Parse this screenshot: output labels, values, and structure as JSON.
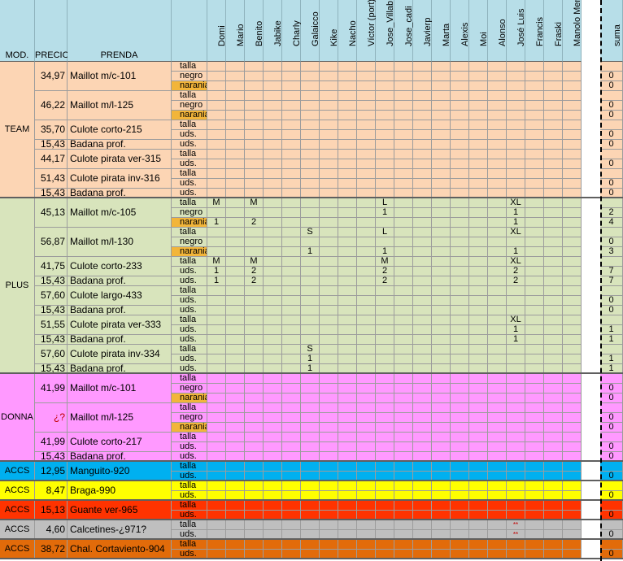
{
  "headers": {
    "mod": "MOD.",
    "precio": "PRECIO",
    "prenda": "PRENDA",
    "suma": "suma"
  },
  "people": [
    "Domi",
    "Mario",
    "Benito",
    "Jabike",
    "Charly",
    "Galaicco",
    "Kike",
    "Nacho",
    "Víctor (port)",
    "Jose_Villab",
    "Jose_cadi",
    "Javierp",
    "Marta",
    "Alexis",
    "Moi",
    "Alonso",
    "José Luis",
    "Francis",
    "Fraski",
    "Manolo Men"
  ],
  "colors": {
    "header": "#b7dee8",
    "team": "#fcd5b4",
    "plus": "#d8e4bc",
    "donna": "#ff99ff",
    "accs_blue": "#00b0f0",
    "accs_yellow": "#ffff00",
    "accs_red": "#ff3300",
    "accs_gray": "#bfbfbf",
    "accs_orange": "#e26b0a",
    "narania": "#f2b53a"
  },
  "blocks": [
    {
      "mod": "TEAM",
      "color": "#fcd5b4",
      "items": [
        {
          "price": "34,97",
          "prenda": "Maillot m/c-101",
          "rows": [
            {
              "attr": "talla",
              "vals": {},
              "sum": ""
            },
            {
              "attr": "negro",
              "vals": {},
              "sum": "0"
            },
            {
              "attr": "narania",
              "hl": true,
              "vals": {},
              "sum": "0"
            }
          ]
        },
        {
          "price": "46,22",
          "prenda": "Maillot m/l-125",
          "rows": [
            {
              "attr": "talla",
              "vals": {},
              "sum": ""
            },
            {
              "attr": "negro",
              "vals": {},
              "sum": "0"
            },
            {
              "attr": "narania",
              "hl": true,
              "vals": {},
              "sum": "0"
            }
          ]
        },
        {
          "price": "35,70",
          "prenda": "Culote corto-215",
          "rows": [
            {
              "attr": "talla",
              "vals": {},
              "sum": ""
            },
            {
              "attr": "uds.",
              "vals": {},
              "sum": "0"
            }
          ]
        },
        {
          "price": "15,43",
          "prenda": "Badana prof.",
          "rows": [
            {
              "attr": "uds.",
              "vals": {},
              "sum": "0"
            }
          ]
        },
        {
          "price": "44,17",
          "prenda": "Culote pirata ver-315",
          "rows": [
            {
              "attr": "talla",
              "vals": {},
              "sum": ""
            },
            {
              "attr": "uds.",
              "vals": {},
              "sum": "0"
            }
          ]
        },
        {
          "price": "51,43",
          "prenda": "Culote pirata inv-316",
          "rows": [
            {
              "attr": "talla",
              "vals": {},
              "sum": ""
            },
            {
              "attr": "uds.",
              "vals": {},
              "sum": "0"
            }
          ]
        },
        {
          "price": "15,43",
          "prenda": "Badana prof.",
          "rows": [
            {
              "attr": "uds.",
              "vals": {},
              "sum": "0"
            }
          ]
        }
      ]
    },
    {
      "mod": "PLUS",
      "color": "#d8e4bc",
      "items": [
        {
          "price": "45,13",
          "prenda": "Maillot m/c-105",
          "rows": [
            {
              "attr": "talla",
              "vals": {
                "0": "M",
                "2": "M",
                "9": "L",
                "16": "XL"
              },
              "sum": ""
            },
            {
              "attr": "negro",
              "vals": {
                "9": "1",
                "16": "1"
              },
              "sum": "2"
            },
            {
              "attr": "narania",
              "hl": true,
              "vals": {
                "0": "1",
                "2": "2",
                "16": "1"
              },
              "sum": "4"
            }
          ]
        },
        {
          "price": "56,87",
          "prenda": "Maillot m/l-130",
          "rows": [
            {
              "attr": "talla",
              "vals": {
                "5": "S",
                "9": "L",
                "16": "XL"
              },
              "sum": ""
            },
            {
              "attr": "negro",
              "vals": {},
              "sum": "0"
            },
            {
              "attr": "narania",
              "hl": true,
              "vals": {
                "5": "1",
                "9": "1",
                "16": "1"
              },
              "sum": "3"
            }
          ]
        },
        {
          "price": "41,75",
          "prenda": "Culote corto-233",
          "rows": [
            {
              "attr": "talla",
              "vals": {
                "0": "M",
                "2": "M",
                "9": "M",
                "16": "XL"
              },
              "sum": ""
            },
            {
              "attr": "uds.",
              "vals": {
                "0": "1",
                "2": "2",
                "9": "2",
                "16": "2"
              },
              "sum": "7"
            }
          ]
        },
        {
          "price": "15,43",
          "prenda": "Badana prof.",
          "rows": [
            {
              "attr": "uds.",
              "vals": {
                "0": "1",
                "2": "2",
                "9": "2",
                "16": "2"
              },
              "sum": "7"
            }
          ]
        },
        {
          "price": "57,60",
          "prenda": "Culote largo-433",
          "rows": [
            {
              "attr": "talla",
              "vals": {},
              "sum": ""
            },
            {
              "attr": "uds.",
              "vals": {},
              "sum": "0"
            }
          ]
        },
        {
          "price": "15,43",
          "prenda": "Badana prof.",
          "rows": [
            {
              "attr": "uds.",
              "vals": {},
              "sum": "0"
            }
          ]
        },
        {
          "price": "51,55",
          "prenda": "Culote pirata ver-333",
          "rows": [
            {
              "attr": "talla",
              "vals": {
                "16": "XL"
              },
              "sum": ""
            },
            {
              "attr": "uds.",
              "vals": {
                "16": "1"
              },
              "sum": "1"
            }
          ]
        },
        {
          "price": "15,43",
          "prenda": "Badana prof.",
          "rows": [
            {
              "attr": "uds.",
              "vals": {
                "16": "1"
              },
              "sum": "1"
            }
          ]
        },
        {
          "price": "57,60",
          "prenda": "Culote pirata inv-334",
          "rows": [
            {
              "attr": "talla",
              "vals": {
                "5": "S"
              },
              "sum": ""
            },
            {
              "attr": "uds.",
              "vals": {
                "5": "1"
              },
              "sum": "1"
            }
          ]
        },
        {
          "price": "15,43",
          "prenda": "Badana prof.",
          "rows": [
            {
              "attr": "uds.",
              "vals": {
                "5": "1"
              },
              "sum": "1"
            }
          ]
        }
      ]
    },
    {
      "mod": "DONNA",
      "color": "#ff99ff",
      "items": [
        {
          "price": "41,99",
          "prenda": "Maillot m/c-101",
          "rows": [
            {
              "attr": "talla",
              "vals": {},
              "sum": ""
            },
            {
              "attr": "negro",
              "vals": {},
              "sum": "0"
            },
            {
              "attr": "narania",
              "hl": true,
              "vals": {},
              "sum": "0"
            }
          ]
        },
        {
          "price": "¿?",
          "priceRed": true,
          "prenda": "Maillot m/l-125",
          "rows": [
            {
              "attr": "talla",
              "vals": {},
              "sum": ""
            },
            {
              "attr": "negro",
              "vals": {},
              "sum": "0"
            },
            {
              "attr": "narania",
              "hl": true,
              "vals": {},
              "sum": "0"
            }
          ]
        },
        {
          "price": "41,99",
          "prenda": "Culote corto-217",
          "rows": [
            {
              "attr": "talla",
              "vals": {},
              "sum": ""
            },
            {
              "attr": "uds.",
              "vals": {},
              "sum": "0"
            }
          ]
        },
        {
          "price": "15,43",
          "prenda": "Badana prof.",
          "rows": [
            {
              "attr": "uds.",
              "vals": {},
              "sum": "0"
            }
          ]
        }
      ]
    },
    {
      "mod": "ACCS",
      "color": "#00b0f0",
      "items": [
        {
          "price": "12,95",
          "prenda": "Manguito-920",
          "rows": [
            {
              "attr": "talla",
              "vals": {},
              "sum": ""
            },
            {
              "attr": "uds.",
              "vals": {},
              "sum": "0"
            }
          ]
        }
      ]
    },
    {
      "mod": "ACCS",
      "color": "#ffff00",
      "items": [
        {
          "price": "8,47",
          "prenda": "Braga-990",
          "rows": [
            {
              "attr": "talla",
              "vals": {},
              "sum": ""
            },
            {
              "attr": "uds.",
              "vals": {},
              "sum": "0"
            }
          ]
        }
      ]
    },
    {
      "mod": "ACCS",
      "color": "#ff3300",
      "items": [
        {
          "price": "15,13",
          "prenda": "Guante ver-965",
          "rows": [
            {
              "attr": "talla",
              "vals": {},
              "sum": ""
            },
            {
              "attr": "uds.",
              "vals": {},
              "sum": "0"
            }
          ]
        }
      ]
    },
    {
      "mod": "ACCS",
      "color": "#bfbfbf",
      "items": [
        {
          "price": "4,60",
          "prenda": "Calcetines-¿971?",
          "rows": [
            {
              "attr": "talla",
              "vals": {
                "16": "**"
              },
              "star": true,
              "sum": ""
            },
            {
              "attr": "uds.",
              "vals": {
                "16": "**"
              },
              "star": true,
              "sum": "0"
            }
          ]
        }
      ]
    },
    {
      "mod": "ACCS",
      "color": "#e26b0a",
      "items": [
        {
          "price": "38,72",
          "prenda": "Chal. Cortaviento-904",
          "rows": [
            {
              "attr": "talla",
              "vals": {},
              "sum": ""
            },
            {
              "attr": "uds.",
              "vals": {},
              "sum": "0"
            }
          ]
        }
      ]
    }
  ]
}
